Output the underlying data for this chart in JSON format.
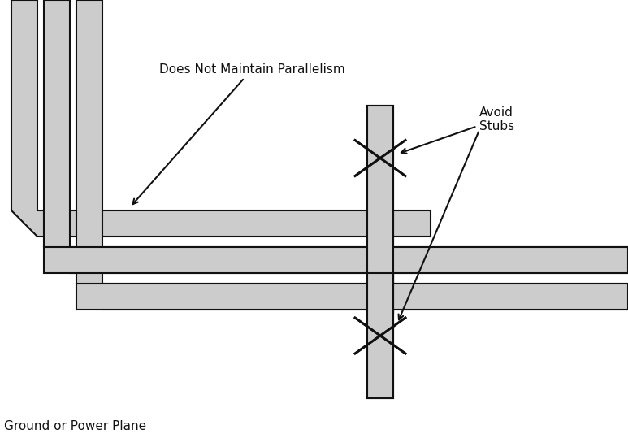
{
  "trace_color": "#cccccc",
  "trace_edge_color": "#111111",
  "trace_linewidth": 1.5,
  "background_color": "#ffffff",
  "text_color": "#000000",
  "label_parallelism": "Does Not Maintain Parallelism",
  "label_stubs": "Avoid\nStubs",
  "label_ground": "Ground or Power Plane",
  "fig_width": 7.73,
  "fig_height": 5.5,
  "dpi": 100,
  "TW": 32
}
